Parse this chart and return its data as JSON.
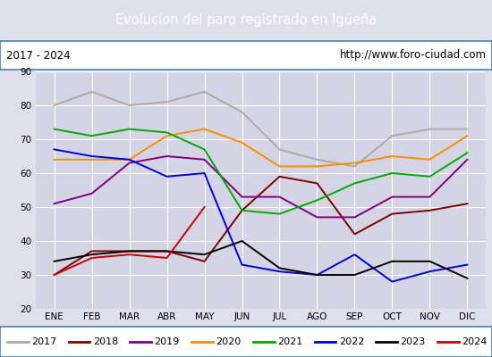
{
  "title": "Evolucion del paro registrado en Igüeña",
  "subtitle_left": "2017 - 2024",
  "subtitle_right": "http://www.foro-ciudad.com",
  "months": [
    "ENE",
    "FEB",
    "MAR",
    "ABR",
    "MAY",
    "JUN",
    "JUL",
    "AGO",
    "SEP",
    "OCT",
    "NOV",
    "DIC"
  ],
  "ylim": [
    20,
    90
  ],
  "yticks": [
    20,
    30,
    40,
    50,
    60,
    70,
    80,
    90
  ],
  "series": {
    "2017": {
      "color": "#aaaaaa",
      "values": [
        80,
        84,
        80,
        81,
        84,
        78,
        67,
        64,
        62,
        71,
        73,
        73
      ]
    },
    "2018": {
      "color": "#800000",
      "values": [
        30,
        37,
        37,
        37,
        34,
        49,
        59,
        57,
        42,
        48,
        49,
        51
      ]
    },
    "2019": {
      "color": "#800080",
      "values": [
        51,
        54,
        63,
        65,
        64,
        53,
        53,
        47,
        47,
        53,
        53,
        64
      ]
    },
    "2020": {
      "color": "#ff8c00",
      "values": [
        64,
        64,
        64,
        71,
        73,
        69,
        62,
        62,
        63,
        65,
        64,
        71
      ]
    },
    "2021": {
      "color": "#00aa00",
      "values": [
        73,
        71,
        73,
        72,
        67,
        49,
        48,
        52,
        57,
        60,
        59,
        66
      ]
    },
    "2022": {
      "color": "#0000dd",
      "values": [
        67,
        65,
        64,
        59,
        60,
        33,
        31,
        30,
        36,
        28,
        31,
        33
      ]
    },
    "2023": {
      "color": "#000000",
      "values": [
        34,
        36,
        37,
        37,
        36,
        40,
        32,
        30,
        30,
        34,
        34,
        29
      ]
    },
    "2024": {
      "color": "#cc0000",
      "values": [
        30,
        35,
        36,
        35,
        50,
        null,
        null,
        null,
        null,
        null,
        null,
        null
      ]
    }
  },
  "legend_order": [
    "2017",
    "2018",
    "2019",
    "2020",
    "2021",
    "2022",
    "2023",
    "2024"
  ],
  "bg_color": "#e0e0ec",
  "plot_bg": "#d4d4e4",
  "header_bg": "#4a7fc1",
  "title_color": "white",
  "grid_color": "white",
  "border_color": "#4a7fc1"
}
